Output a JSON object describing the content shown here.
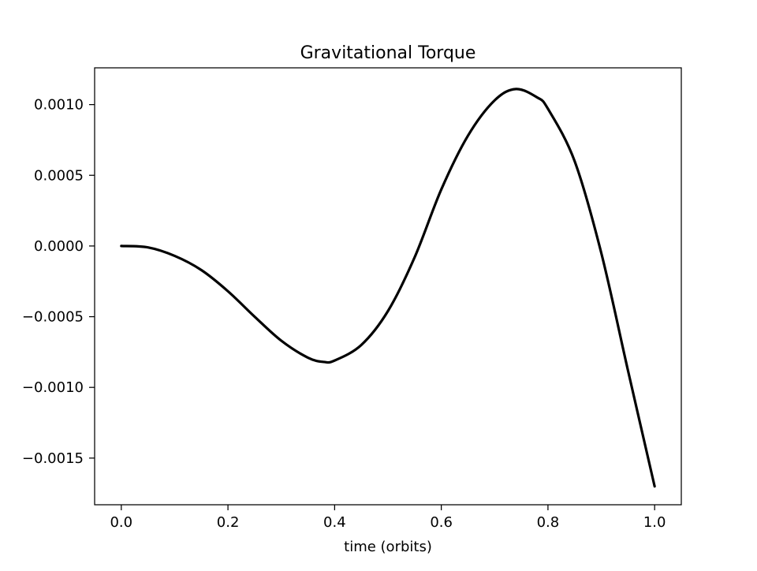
{
  "chart_data": {
    "type": "line",
    "title": "Gravitational Torque",
    "xlabel": "time (orbits)",
    "ylabel": "",
    "xlim": [
      -0.05,
      1.05
    ],
    "ylim": [
      -0.00183,
      0.00126
    ],
    "xticks": [
      0.0,
      0.2,
      0.4,
      0.6,
      0.8,
      1.0
    ],
    "xtick_labels": [
      "0.0",
      "0.2",
      "0.4",
      "0.6",
      "0.8",
      "1.0"
    ],
    "yticks": [
      -0.0015,
      -0.001,
      -0.0005,
      0.0,
      0.0005,
      0.001
    ],
    "ytick_labels": [
      "−0.0015",
      "−0.0010",
      "−0.0005",
      "0.0000",
      "0.0005",
      "0.0010"
    ],
    "grid": false,
    "legend": "none",
    "line_color": "#000000",
    "series": [
      {
        "x": [
          0.0,
          0.05,
          0.1,
          0.15,
          0.2,
          0.25,
          0.3,
          0.35,
          0.38,
          0.4,
          0.45,
          0.5,
          0.55,
          0.6,
          0.65,
          0.7,
          0.74,
          0.78,
          0.8,
          0.85,
          0.9,
          0.95,
          1.0
        ],
        "y": [
          0.0,
          -1e-05,
          -7e-05,
          -0.00017,
          -0.00032,
          -0.0005,
          -0.00067,
          -0.00079,
          -0.00082,
          -0.00081,
          -0.0007,
          -0.00046,
          -8e-05,
          0.0004,
          0.00078,
          0.00103,
          0.00111,
          0.00105,
          0.00097,
          0.0006,
          -5e-05,
          -0.00088,
          -0.0017
        ]
      }
    ]
  }
}
